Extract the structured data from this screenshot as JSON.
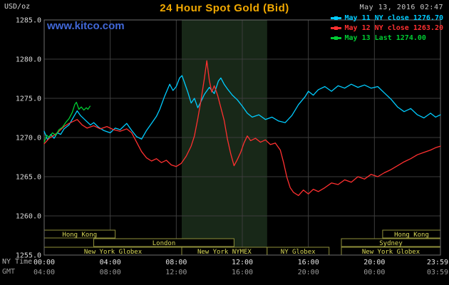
{
  "header": {
    "units": "USD/oz",
    "title": "24 Hour Spot Gold (Bid)",
    "datetime": "May 13, 2016 02:47",
    "watermark": "www.kitco.com"
  },
  "legend": {
    "items": [
      {
        "label": "May 11 NY close 1276.70",
        "color": "#00ccff"
      },
      {
        "label": "May 12 NY close 1263.20",
        "color": "#ff3030"
      },
      {
        "label": "May 13 Last 1274.00",
        "color": "#00cc33"
      }
    ]
  },
  "axes": {
    "ny_time_label": "NY Time",
    "gmt_label": "GMT",
    "y_ticks": [
      "1285.0",
      "1280.0",
      "1275.0",
      "1270.0",
      "1265.0",
      "1260.0",
      "1255.0"
    ],
    "x_tick_hours": [
      0,
      4,
      8,
      12,
      16,
      20,
      24
    ],
    "x_ticks_ny": [
      "00:00",
      "04:00",
      "08:00",
      "12:00",
      "16:00",
      "20:00",
      "23:59"
    ],
    "x_ticks_gmt": [
      "04:00",
      "08:00",
      "12:00",
      "16:00",
      "20:00",
      "00:00",
      "03:59"
    ]
  },
  "sessions": [
    {
      "row": 0,
      "label": "Hong Kong",
      "start": 0,
      "end": 4.3
    },
    {
      "row": 0,
      "label": "Hong Kong",
      "start": 20.5,
      "end": 24
    },
    {
      "row": 1,
      "label": "London",
      "start": 3.0,
      "end": 11.5
    },
    {
      "row": 1,
      "label": "Sydney",
      "start": 18.0,
      "end": 24
    },
    {
      "row": 2,
      "label": "New York Globex",
      "start": 0,
      "end": 8.33
    },
    {
      "row": 2,
      "label": "New York NYMEX",
      "start": 8.33,
      "end": 13.5
    },
    {
      "row": 2,
      "label": "NY Globex",
      "start": 13.5,
      "end": 17.25
    },
    {
      "row": 2,
      "label": "New York Globex",
      "start": 18.0,
      "end": 24
    }
  ],
  "colors": {
    "background": "#000000",
    "title": "#f2a900",
    "grid": "#3d3d3d",
    "border": "#6e6e6e",
    "shaded_band": "#182818",
    "session_box_stroke": "#8f8f3a",
    "session_text": "#d8d858",
    "watermark_blue": "#4168d8"
  },
  "chart_data": {
    "type": "line",
    "title": "24 Hour Spot Gold (Bid)",
    "ylabel": "USD/oz",
    "xlabel": "NY Time (hours, 00:00-23:59)",
    "ylim": [
      1255,
      1285
    ],
    "xlim_hours": [
      0,
      24
    ],
    "grid": true,
    "legend_position": "top-right",
    "shaded_region_hours": [
      8.33,
      13.5
    ],
    "y_tick_values": [
      1285,
      1280,
      1275,
      1270,
      1265,
      1260,
      1255
    ],
    "series": [
      {
        "name": "May 11",
        "close": 1276.7,
        "color": "#00ccff",
        "points": [
          [
            0,
            1270.8
          ],
          [
            0.2,
            1269.7
          ],
          [
            0.4,
            1270.4
          ],
          [
            0.6,
            1269.9
          ],
          [
            0.8,
            1270.6
          ],
          [
            1,
            1270.4
          ],
          [
            1.2,
            1271.1
          ],
          [
            1.5,
            1271.6
          ],
          [
            1.8,
            1272.7
          ],
          [
            2,
            1273.4
          ],
          [
            2.2,
            1272.8
          ],
          [
            2.5,
            1272.2
          ],
          [
            2.8,
            1271.6
          ],
          [
            3,
            1271.9
          ],
          [
            3.3,
            1271.3
          ],
          [
            3.6,
            1270.9
          ],
          [
            4,
            1270.6
          ],
          [
            4.3,
            1271.2
          ],
          [
            4.6,
            1271
          ],
          [
            5,
            1271.8
          ],
          [
            5.3,
            1270.9
          ],
          [
            5.6,
            1270.1
          ],
          [
            5.9,
            1269.8
          ],
          [
            6.2,
            1270.9
          ],
          [
            6.5,
            1271.8
          ],
          [
            6.8,
            1272.7
          ],
          [
            7,
            1273.6
          ],
          [
            7.3,
            1275.3
          ],
          [
            7.6,
            1276.8
          ],
          [
            7.8,
            1276
          ],
          [
            8,
            1276.5
          ],
          [
            8.2,
            1277.6
          ],
          [
            8.35,
            1277.9
          ],
          [
            8.5,
            1277
          ],
          [
            8.7,
            1275.8
          ],
          [
            8.9,
            1274.4
          ],
          [
            9.1,
            1275
          ],
          [
            9.3,
            1273.8
          ],
          [
            9.5,
            1274.6
          ],
          [
            9.7,
            1275.5
          ],
          [
            10,
            1276.4
          ],
          [
            10.3,
            1275.6
          ],
          [
            10.55,
            1277.2
          ],
          [
            10.7,
            1277.6
          ],
          [
            10.9,
            1276.8
          ],
          [
            11.1,
            1276.2
          ],
          [
            11.4,
            1275.4
          ],
          [
            11.7,
            1274.8
          ],
          [
            12,
            1274
          ],
          [
            12.3,
            1273.1
          ],
          [
            12.6,
            1272.6
          ],
          [
            13,
            1272.9
          ],
          [
            13.4,
            1272.3
          ],
          [
            13.8,
            1272.6
          ],
          [
            14.2,
            1272.1
          ],
          [
            14.6,
            1271.9
          ],
          [
            15,
            1272.8
          ],
          [
            15.4,
            1274.2
          ],
          [
            15.8,
            1275.2
          ],
          [
            16,
            1275.9
          ],
          [
            16.3,
            1275.4
          ],
          [
            16.6,
            1276.1
          ],
          [
            17,
            1276.5
          ],
          [
            17.4,
            1275.9
          ],
          [
            17.8,
            1276.6
          ],
          [
            18.2,
            1276.3
          ],
          [
            18.6,
            1276.8
          ],
          [
            19,
            1276.4
          ],
          [
            19.4,
            1276.7
          ],
          [
            19.8,
            1276.3
          ],
          [
            20.2,
            1276.5
          ],
          [
            20.6,
            1275.7
          ],
          [
            21,
            1274.9
          ],
          [
            21.4,
            1273.9
          ],
          [
            21.8,
            1273.3
          ],
          [
            22.2,
            1273.7
          ],
          [
            22.6,
            1272.9
          ],
          [
            23,
            1272.5
          ],
          [
            23.4,
            1273.1
          ],
          [
            23.7,
            1272.6
          ],
          [
            24,
            1272.9
          ]
        ]
      },
      {
        "name": "May 12",
        "close": 1263.2,
        "color": "#ff3030",
        "points": [
          [
            0,
            1269.2
          ],
          [
            0.3,
            1269.9
          ],
          [
            0.6,
            1270.3
          ],
          [
            0.9,
            1270.8
          ],
          [
            1.2,
            1271.4
          ],
          [
            1.5,
            1271.8
          ],
          [
            1.8,
            1272.1
          ],
          [
            2,
            1272.3
          ],
          [
            2.3,
            1271.6
          ],
          [
            2.6,
            1271.2
          ],
          [
            3,
            1271.5
          ],
          [
            3.4,
            1271.1
          ],
          [
            3.8,
            1271.4
          ],
          [
            4.2,
            1271
          ],
          [
            4.6,
            1270.8
          ],
          [
            5,
            1271.1
          ],
          [
            5.3,
            1270.6
          ],
          [
            5.6,
            1269.4
          ],
          [
            5.9,
            1268.2
          ],
          [
            6.2,
            1267.4
          ],
          [
            6.5,
            1267
          ],
          [
            6.8,
            1267.3
          ],
          [
            7.1,
            1266.8
          ],
          [
            7.4,
            1267.1
          ],
          [
            7.7,
            1266.5
          ],
          [
            8,
            1266.3
          ],
          [
            8.3,
            1266.7
          ],
          [
            8.6,
            1267.6
          ],
          [
            8.9,
            1268.9
          ],
          [
            9.1,
            1270.2
          ],
          [
            9.3,
            1272.4
          ],
          [
            9.5,
            1274.8
          ],
          [
            9.7,
            1277.5
          ],
          [
            9.85,
            1279.8
          ],
          [
            10,
            1277.3
          ],
          [
            10.15,
            1275.8
          ],
          [
            10.3,
            1276.6
          ],
          [
            10.5,
            1275.4
          ],
          [
            10.7,
            1273.8
          ],
          [
            10.9,
            1272.2
          ],
          [
            11.1,
            1269.8
          ],
          [
            11.3,
            1267.9
          ],
          [
            11.5,
            1266.4
          ],
          [
            11.7,
            1267.2
          ],
          [
            11.9,
            1268.1
          ],
          [
            12.1,
            1269.3
          ],
          [
            12.3,
            1270.2
          ],
          [
            12.5,
            1269.6
          ],
          [
            12.8,
            1269.9
          ],
          [
            13.1,
            1269.4
          ],
          [
            13.4,
            1269.7
          ],
          [
            13.7,
            1269.1
          ],
          [
            14,
            1269.3
          ],
          [
            14.3,
            1268.4
          ],
          [
            14.5,
            1266.8
          ],
          [
            14.7,
            1264.9
          ],
          [
            14.9,
            1263.6
          ],
          [
            15.1,
            1263
          ],
          [
            15.4,
            1262.6
          ],
          [
            15.7,
            1263.3
          ],
          [
            16,
            1262.8
          ],
          [
            16.3,
            1263.4
          ],
          [
            16.6,
            1263.1
          ],
          [
            17,
            1263.6
          ],
          [
            17.4,
            1264.2
          ],
          [
            17.8,
            1264
          ],
          [
            18.2,
            1264.6
          ],
          [
            18.6,
            1264.3
          ],
          [
            19,
            1265
          ],
          [
            19.4,
            1264.7
          ],
          [
            19.8,
            1265.3
          ],
          [
            20.2,
            1265
          ],
          [
            20.6,
            1265.5
          ],
          [
            21,
            1265.9
          ],
          [
            21.4,
            1266.4
          ],
          [
            21.8,
            1266.9
          ],
          [
            22.2,
            1267.3
          ],
          [
            22.6,
            1267.8
          ],
          [
            23,
            1268.1
          ],
          [
            23.4,
            1268.4
          ],
          [
            23.7,
            1268.7
          ],
          [
            24,
            1268.9
          ]
        ]
      },
      {
        "name": "May 13",
        "last": 1274.0,
        "color": "#00cc33",
        "points": [
          [
            0,
            1269.4
          ],
          [
            0.15,
            1270.3
          ],
          [
            0.3,
            1270
          ],
          [
            0.5,
            1270.6
          ],
          [
            0.7,
            1270.3
          ],
          [
            0.9,
            1271
          ],
          [
            1.1,
            1271.3
          ],
          [
            1.3,
            1271.9
          ],
          [
            1.5,
            1272.4
          ],
          [
            1.7,
            1273.2
          ],
          [
            1.85,
            1274.2
          ],
          [
            1.95,
            1274.5
          ],
          [
            2.1,
            1273.6
          ],
          [
            2.25,
            1273.9
          ],
          [
            2.4,
            1273.5
          ],
          [
            2.55,
            1273.8
          ],
          [
            2.65,
            1273.6
          ],
          [
            2.78,
            1274
          ]
        ]
      }
    ]
  }
}
